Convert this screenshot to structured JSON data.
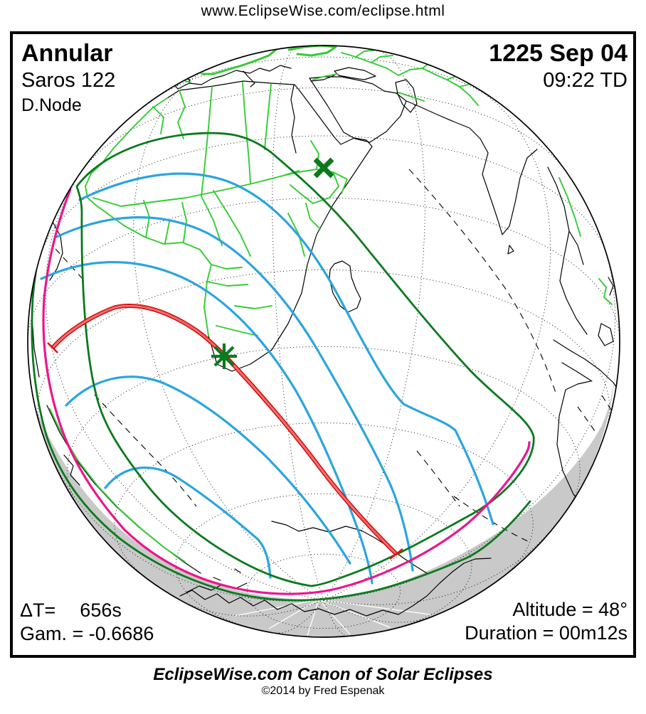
{
  "header": {
    "url": "www.EclipseWise.com/eclipse.html"
  },
  "panel": {
    "eclipse_type": "Annular",
    "saros": "Saros 122",
    "node": "D.Node",
    "date": "1225 Sep 04",
    "time": "09:22 TD",
    "delta_t_label": "ΔT=",
    "delta_t_value": "656s",
    "gamma": "Gam. = -0.6686",
    "altitude": "Altitude = 48°",
    "duration": "Duration = 00m12s"
  },
  "footer": {
    "title": "EclipseWise.com Canon of Solar Eclipses",
    "copyright": "©2014 by Fred Espenak"
  },
  "map": {
    "projection": "orthographic globe",
    "markers": {
      "greatest_eclipse_marker": "asterisk",
      "sub_solar_marker": "x-cross"
    },
    "colors": {
      "country_border": "#33CC33",
      "penumbral_limit": "#0B7A1E",
      "magnitude_contour": "#2AA5DF",
      "central_path": "#DD1111",
      "rise_set_curve": "#EC168C",
      "night_shading": "#C9C9C9"
    }
  }
}
